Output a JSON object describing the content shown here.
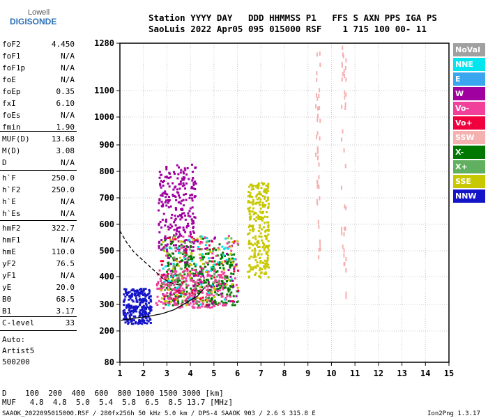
{
  "logo": {
    "line1": "Lowell",
    "line2": "DIGISONDE"
  },
  "header": {
    "line1": "Station YYYY DAY   DDD HHMMSS P1   FFS S AXN PPS IGA PS",
    "line2": "SaoLuis 2022 Apr05 095 015000 RSF    1 715 100 00- 11"
  },
  "scaled": [
    {
      "label": "foF2",
      "value": "4.450"
    },
    {
      "label": "foF1",
      "value": "N/A"
    },
    {
      "label": "foF1p",
      "value": "N/A"
    },
    {
      "label": "foE",
      "value": "N/A"
    },
    {
      "label": "foEp",
      "value": "0.35"
    },
    {
      "label": "fxI",
      "value": "6.10"
    },
    {
      "label": "foEs",
      "value": "N/A"
    },
    {
      "label": "fmin",
      "value": "1.90"
    }
  ],
  "muf_group": [
    {
      "label": "MUF(D)",
      "value": "13.68"
    },
    {
      "label": "M(D)",
      "value": "3.08"
    },
    {
      "label": "D",
      "value": "N/A"
    }
  ],
  "height_group": [
    {
      "label": "h`F",
      "value": "250.0"
    },
    {
      "label": "h`F2",
      "value": "250.0"
    },
    {
      "label": "h`E",
      "value": "N/A"
    },
    {
      "label": "h`Es",
      "value": "N/A"
    }
  ],
  "profile_group": [
    {
      "label": "hmF2",
      "value": "322.7"
    },
    {
      "label": "hmF1",
      "value": "N/A"
    },
    {
      "label": "hmE",
      "value": "110.0"
    },
    {
      "label": "yF2",
      "value": "76.5"
    },
    {
      "label": "yF1",
      "value": "N/A"
    },
    {
      "label": "yE",
      "value": "20.0"
    },
    {
      "label": "B0",
      "value": "68.5"
    },
    {
      "label": "B1",
      "value": "3.17"
    }
  ],
  "clevel": {
    "label": "C-level",
    "value": "33"
  },
  "auto_text": [
    "Auto:",
    "Artist5",
    "500200"
  ],
  "legend": [
    {
      "label": "NoVal",
      "color": "#a0a0a0"
    },
    {
      "label": "NNE",
      "color": "#00e5ee"
    },
    {
      "label": "E",
      "color": "#3aa6f0"
    },
    {
      "label": "W",
      "color": "#a000a0"
    },
    {
      "label": "Vo-",
      "color": "#f0409a"
    },
    {
      "label": "Vo+",
      "color": "#f0003c"
    },
    {
      "label": "SSW",
      "color": "#f5b0b0"
    },
    {
      "label": "X-",
      "color": "#007800"
    },
    {
      "label": "X+",
      "color": "#60b060"
    },
    {
      "label": "SSE",
      "color": "#c8c800"
    },
    {
      "label": "NNW",
      "color": "#1414c8"
    }
  ],
  "footer": {
    "d_row": "D    100  200  400  600  800 1000 1500 3000 [km]",
    "muf_row": "MUF   4.8  4.8  5.0  5.4  5.8  6.5  8.5 13.7 [MHz]",
    "source": "SAAOK_2022095015000.RSF / 280fx256h 50 kHz 5.0 km / DPS-4 SAAOK 903 / 2.6 S 315.8 E",
    "version": "Ion2Png 1.3.17"
  },
  "chart_data": {
    "type": "scatter",
    "title": "",
    "xlabel": "",
    "ylabel": "",
    "x_ticks": [
      1,
      2,
      3,
      4,
      5,
      6,
      7,
      8,
      9,
      10,
      11,
      12,
      13,
      14,
      15
    ],
    "y_ticks": [
      80,
      200,
      300,
      400,
      500,
      600,
      700,
      800,
      900,
      1000,
      1100,
      1280
    ],
    "xlim": [
      1,
      15
    ],
    "ylim": [
      80,
      1280
    ],
    "y_scale": "nonlinear (ionogram virtual height)",
    "grid": true,
    "legend_position": "right",
    "clusters": [
      {
        "name": "NNW",
        "x": [
          1.1,
          2.3
        ],
        "y": [
          230,
          360
        ]
      },
      {
        "name": "W",
        "x": [
          2.6,
          4.2
        ],
        "y": [
          500,
          830
        ]
      },
      {
        "name": "X-",
        "x": [
          2.9,
          5.8
        ],
        "y": [
          300,
          500
        ]
      },
      {
        "name": "Vo-",
        "x": [
          2.5,
          5.5
        ],
        "y": [
          290,
          430
        ]
      },
      {
        "name": "SSE",
        "x": [
          6.4,
          7.3
        ],
        "y": [
          400,
          760
        ]
      },
      {
        "name": "SSW",
        "x": [
          9.3,
          9.5
        ],
        "y": [
          470,
          1280
        ]
      },
      {
        "name": "SSW",
        "x": [
          10.4,
          10.6
        ],
        "y": [
          330,
          1280
        ]
      }
    ],
    "traces": [
      {
        "name": "o-trace",
        "style": "solid",
        "points": [
          [
            1.05,
            240
          ],
          [
            1.6,
            248
          ],
          [
            2.2,
            255
          ],
          [
            2.8,
            265
          ],
          [
            3.3,
            280
          ],
          [
            3.8,
            305
          ],
          [
            4.3,
            330
          ],
          [
            4.6,
            360
          ]
        ]
      },
      {
        "name": "x-trace",
        "style": "dashed",
        "points": [
          [
            1.0,
            575
          ],
          [
            1.3,
            530
          ],
          [
            1.6,
            495
          ],
          [
            1.9,
            470
          ],
          [
            2.2,
            445
          ],
          [
            2.5,
            420
          ],
          [
            2.8,
            395
          ],
          [
            3.1,
            380
          ],
          [
            3.5,
            370
          ]
        ]
      }
    ]
  }
}
